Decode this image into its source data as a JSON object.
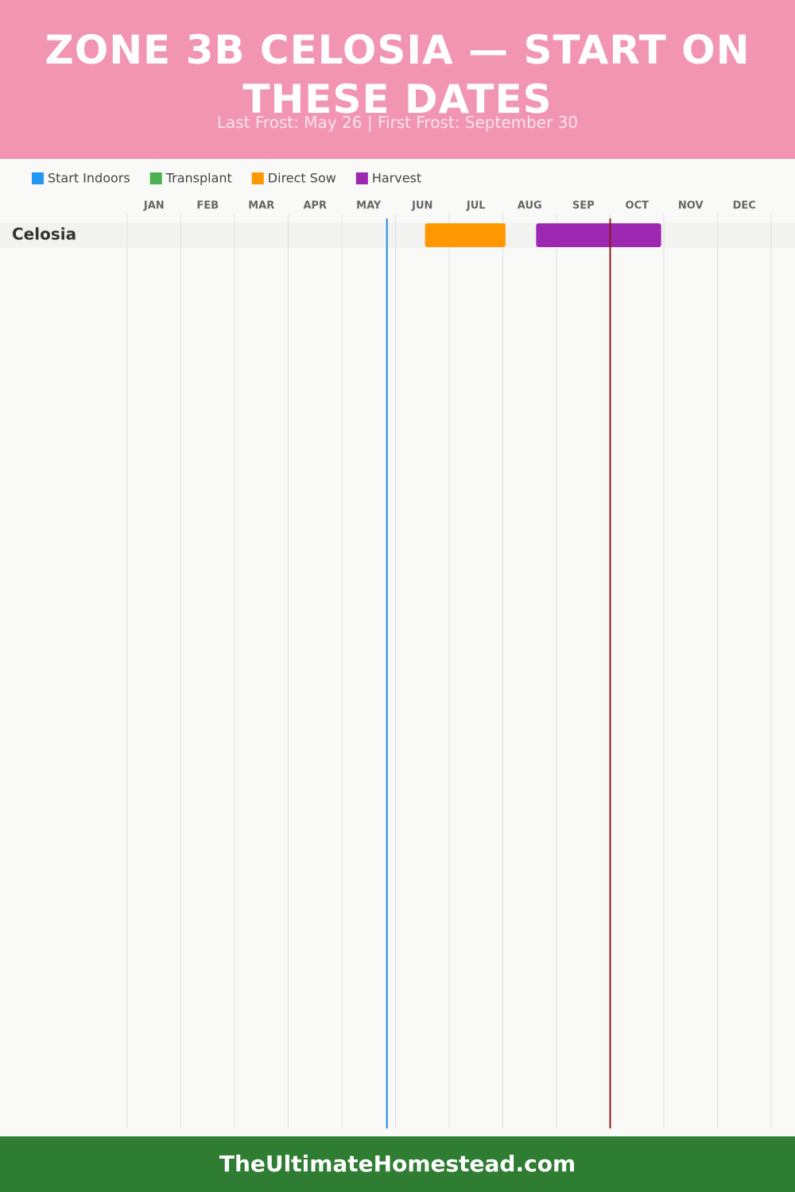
{
  "header": {
    "title": "ZONE 3B CELOSIA — START ON THESE DATES",
    "subtitle": "Last Frost: May 26 | First Frost: September 30"
  },
  "chart_data": {
    "type": "gantt",
    "categories": [
      "Celosia"
    ],
    "series": [
      {
        "name": "Start Indoors",
        "color": "#2196f3",
        "values": [
          null
        ]
      },
      {
        "name": "Transplant",
        "color": "#4caf50",
        "values": [
          null
        ]
      },
      {
        "name": "Direct Sow",
        "color": "#ff9800",
        "values": [
          [
            5.55,
            7.05
          ]
        ]
      },
      {
        "name": "Harvest",
        "color": "#9c27b0",
        "values": [
          [
            7.62,
            9.95
          ]
        ]
      }
    ],
    "xlim": [
      0,
      12
    ],
    "xticks": [
      {
        "value": 0,
        "label": "JAN"
      },
      {
        "value": 1,
        "label": "FEB"
      },
      {
        "value": 2,
        "label": "MAR"
      },
      {
        "value": 3,
        "label": "APR"
      },
      {
        "value": 4,
        "label": "MAY"
      },
      {
        "value": 5,
        "label": "JUN"
      },
      {
        "value": 6,
        "label": "JUL"
      },
      {
        "value": 7,
        "label": "AUG"
      },
      {
        "value": 8,
        "label": "SEP"
      },
      {
        "value": 9,
        "label": "OCT"
      },
      {
        "value": 10,
        "label": "NOV"
      },
      {
        "value": 11,
        "label": "DEC"
      }
    ],
    "markers": [
      {
        "value": 4.84,
        "color": "#1e88e5"
      },
      {
        "value": 9.0,
        "color": "#8b1a1a"
      }
    ],
    "grid": true
  },
  "footer": {
    "text": "TheUltimateHomestead.com"
  }
}
